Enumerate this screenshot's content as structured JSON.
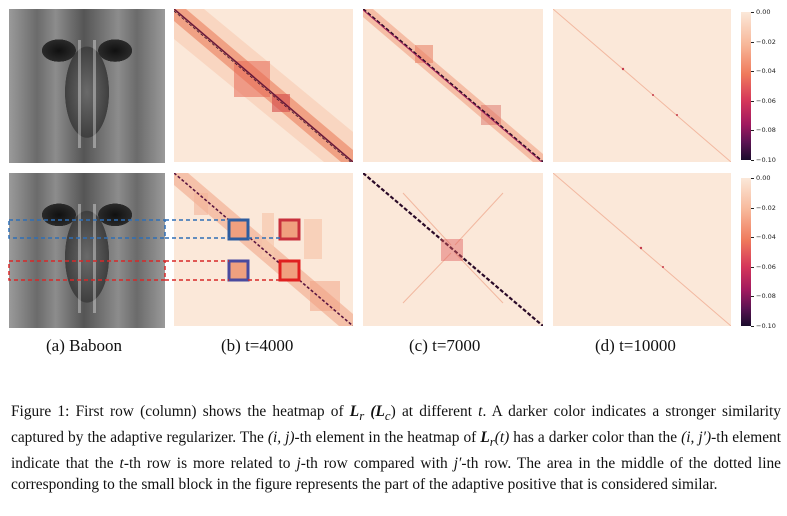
{
  "subfigures": {
    "a": "(a) Baboon",
    "b": "(b) t=4000",
    "c": "(c) t=7000",
    "d": "(d) t=10000"
  },
  "colorbar_ticks": [
    "0.00",
    "−0.02",
    "−0.04",
    "−0.06",
    "−0.08",
    "−0.10"
  ],
  "caption": {
    "lead": "Figure 1: ",
    "s1a": "First row (column) shows the heatmap of ",
    "s1b": " at different ",
    "s1c": ". A darker color indicates a stronger similarity captured by the adaptive regularizer. The ",
    "s2a": "-th element in the heatmap of ",
    "s2b": " has a darker color than the ",
    "s2c": "-th element indicate that the ",
    "s2d": "-th row is more related to ",
    "s2e": "-th row compared with ",
    "s2f": "-th row. The area in the middle of the dotted line corresponding to the small block in the figure represents the part of the adaptive positive that is considered similar.",
    "m_L": "L",
    "m_r": "r",
    "m_Lc": "(L",
    "m_c": "c",
    "m_close": ")",
    "m_t": "t",
    "m_ij": "(i, j)",
    "m_Lrt": "L",
    "m_r2": "r",
    "m_t2": "(t)",
    "m_ijp": "(i, j′)",
    "m_t3": "t",
    "m_j": "j",
    "m_jp": "j′"
  }
}
